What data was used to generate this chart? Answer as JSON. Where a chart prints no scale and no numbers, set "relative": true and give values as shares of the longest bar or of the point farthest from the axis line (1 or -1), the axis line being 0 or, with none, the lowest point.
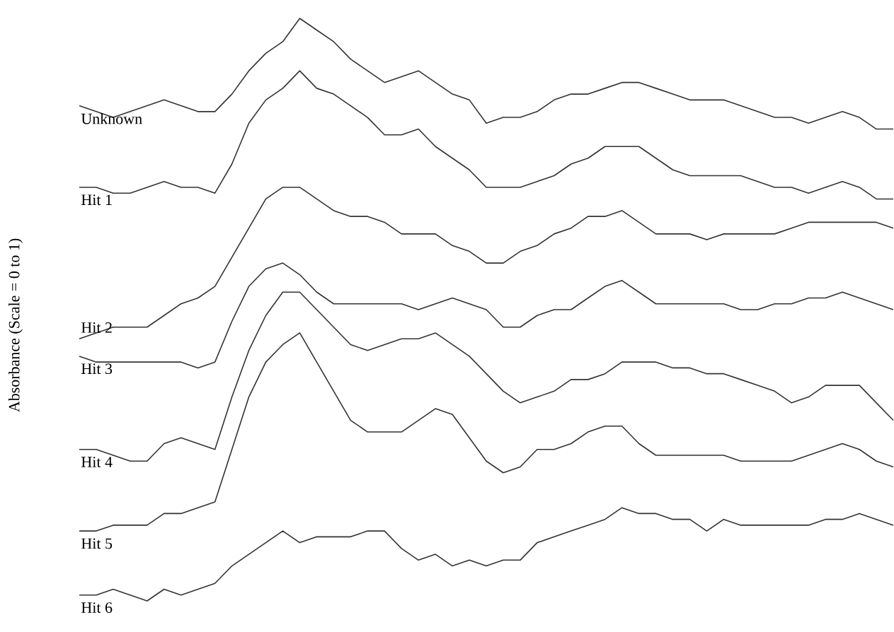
{
  "chart_data": {
    "type": "line",
    "relative": true,
    "ylabel": "Absorbance (Scale = 0 to 1)",
    "categories": [
      null,
      null,
      null,
      null,
      null,
      null,
      null,
      null,
      null,
      null,
      null,
      null,
      null,
      null,
      null,
      null,
      null,
      null,
      null,
      null,
      null,
      null,
      null,
      null,
      null,
      null,
      null,
      null,
      null,
      null,
      null,
      null,
      null,
      null,
      null,
      null,
      null,
      null,
      null,
      null,
      null,
      null,
      null,
      null,
      null,
      null,
      null,
      null,
      null
    ],
    "series": [
      {
        "name": "Unknown",
        "color": "#333333",
        "values": [
          0.85,
          0.84,
          0.83,
          0.84,
          0.85,
          0.86,
          0.85,
          0.84,
          0.84,
          0.87,
          0.91,
          0.94,
          0.96,
          1.0,
          0.98,
          0.96,
          0.93,
          0.91,
          0.89,
          0.9,
          0.91,
          0.89,
          0.87,
          0.86,
          0.82,
          0.83,
          0.83,
          0.84,
          0.86,
          0.87,
          0.87,
          0.88,
          0.89,
          0.89,
          0.88,
          0.87,
          0.86,
          0.86,
          0.86,
          0.85,
          0.84,
          0.83,
          0.83,
          0.82,
          0.83,
          0.84,
          0.83,
          0.81,
          0.81
        ]
      },
      {
        "name": "Hit 1",
        "color": "#333333",
        "values": [
          0.71,
          0.71,
          0.7,
          0.7,
          0.71,
          0.72,
          0.71,
          0.71,
          0.7,
          0.75,
          0.82,
          0.86,
          0.88,
          0.91,
          0.88,
          0.87,
          0.85,
          0.83,
          0.8,
          0.8,
          0.81,
          0.78,
          0.76,
          0.74,
          0.71,
          0.71,
          0.71,
          0.72,
          0.73,
          0.75,
          0.76,
          0.78,
          0.78,
          0.78,
          0.76,
          0.74,
          0.73,
          0.73,
          0.73,
          0.73,
          0.72,
          0.71,
          0.71,
          0.7,
          0.71,
          0.72,
          0.71,
          0.69,
          0.69
        ]
      },
      {
        "name": "Hit 2",
        "color": "#333333",
        "values": [
          0.45,
          0.46,
          0.47,
          0.47,
          0.47,
          0.49,
          0.51,
          0.52,
          0.54,
          0.59,
          0.64,
          0.69,
          0.71,
          0.71,
          0.69,
          0.67,
          0.66,
          0.66,
          0.65,
          0.63,
          0.63,
          0.63,
          0.61,
          0.6,
          0.58,
          0.58,
          0.6,
          0.61,
          0.63,
          0.64,
          0.66,
          0.66,
          0.67,
          0.65,
          0.63,
          0.63,
          0.63,
          0.62,
          0.63,
          0.63,
          0.63,
          0.63,
          0.64,
          0.65,
          0.65,
          0.65,
          0.65,
          0.65,
          0.64
        ]
      },
      {
        "name": "Hit 3",
        "color": "#333333",
        "values": [
          0.42,
          0.41,
          0.41,
          0.41,
          0.41,
          0.41,
          0.41,
          0.4,
          0.41,
          0.48,
          0.54,
          0.57,
          0.58,
          0.56,
          0.53,
          0.51,
          0.51,
          0.51,
          0.51,
          0.51,
          0.5,
          0.51,
          0.52,
          0.51,
          0.5,
          0.47,
          0.47,
          0.49,
          0.5,
          0.5,
          0.52,
          0.54,
          0.55,
          0.53,
          0.51,
          0.51,
          0.51,
          0.51,
          0.51,
          0.5,
          0.5,
          0.51,
          0.51,
          0.52,
          0.52,
          0.53,
          0.52,
          0.51,
          0.5
        ]
      },
      {
        "name": "Hit 4",
        "color": "#333333",
        "values": [
          0.26,
          0.26,
          0.25,
          0.24,
          0.24,
          0.27,
          0.28,
          0.27,
          0.26,
          0.35,
          0.43,
          0.49,
          0.53,
          0.53,
          0.5,
          0.47,
          0.44,
          0.43,
          0.44,
          0.45,
          0.45,
          0.46,
          0.44,
          0.42,
          0.39,
          0.36,
          0.34,
          0.35,
          0.36,
          0.38,
          0.38,
          0.39,
          0.41,
          0.41,
          0.41,
          0.4,
          0.4,
          0.39,
          0.39,
          0.38,
          0.37,
          0.36,
          0.34,
          0.35,
          0.37,
          0.37,
          0.37,
          0.34,
          0.31
        ]
      },
      {
        "name": "Hit 5",
        "color": "#333333",
        "values": [
          0.12,
          0.12,
          0.13,
          0.13,
          0.13,
          0.15,
          0.15,
          0.16,
          0.17,
          0.26,
          0.35,
          0.41,
          0.44,
          0.46,
          0.41,
          0.36,
          0.31,
          0.29,
          0.29,
          0.29,
          0.31,
          0.33,
          0.32,
          0.28,
          0.24,
          0.22,
          0.23,
          0.26,
          0.26,
          0.27,
          0.29,
          0.3,
          0.3,
          0.27,
          0.25,
          0.25,
          0.25,
          0.25,
          0.25,
          0.24,
          0.24,
          0.24,
          0.24,
          0.25,
          0.26,
          0.27,
          0.26,
          0.24,
          0.23
        ]
      },
      {
        "name": "Hit 6",
        "color": "#333333",
        "values": [
          0.01,
          0.01,
          0.02,
          0.01,
          0.0,
          0.02,
          0.01,
          0.02,
          0.03,
          0.06,
          0.08,
          0.1,
          0.12,
          0.1,
          0.11,
          0.11,
          0.11,
          0.12,
          0.12,
          0.09,
          0.07,
          0.08,
          0.06,
          0.07,
          0.06,
          0.07,
          0.07,
          0.1,
          0.11,
          0.12,
          0.13,
          0.14,
          0.16,
          0.15,
          0.15,
          0.14,
          0.14,
          0.12,
          0.14,
          0.13,
          0.13,
          0.13,
          0.13,
          0.13,
          0.14,
          0.14,
          0.15,
          0.14,
          0.13
        ]
      }
    ]
  }
}
